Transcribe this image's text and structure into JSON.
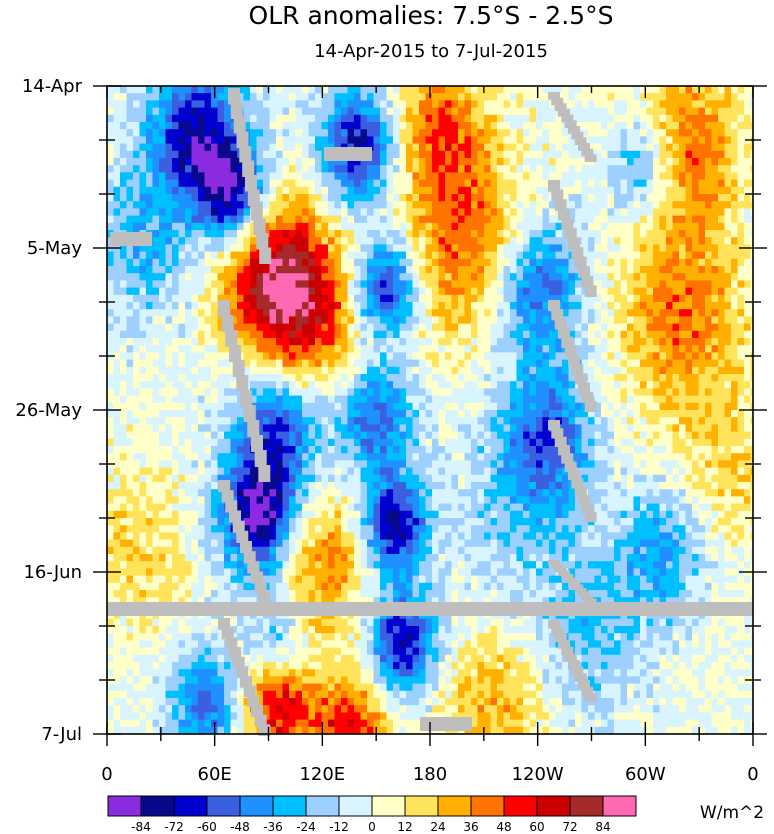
{
  "chart_data": {
    "type": "heatmap",
    "title": "OLR anomalies: 7.5°S - 2.5°S",
    "subtitle": "14-Apr-2015 to 7-Jul-2015",
    "units_label": "W/m^2",
    "x_ticks": [
      {
        "lon": 0,
        "label": "0"
      },
      {
        "lon": 60,
        "label": "60E"
      },
      {
        "lon": 120,
        "label": "120E"
      },
      {
        "lon": 180,
        "label": "180"
      },
      {
        "lon": 240,
        "label": "120W"
      },
      {
        "lon": 300,
        "label": "60W"
      },
      {
        "lon": 360,
        "label": "0"
      }
    ],
    "x_minor_step": 30,
    "xlim": [
      0,
      360
    ],
    "y_ticks": [
      {
        "day": 0,
        "label": "14-Apr"
      },
      {
        "day": 21,
        "label": "5-May"
      },
      {
        "day": 42,
        "label": "26-May"
      },
      {
        "day": 63,
        "label": "16-Jun"
      },
      {
        "day": 84,
        "label": "7-Jul"
      }
    ],
    "y_minor_step": 7,
    "ylim_days": [
      0,
      84
    ],
    "colorbar": {
      "levels": [
        "-84",
        "-72",
        "-60",
        "-48",
        "-36",
        "-24",
        "-12",
        "0",
        "12",
        "24",
        "36",
        "48",
        "60",
        "72",
        "84"
      ],
      "colors": [
        "#8a2be2",
        "#08088a",
        "#0000d0",
        "#3a5fe0",
        "#1e90ff",
        "#00bfff",
        "#9dcfff",
        "#d8f4ff",
        "#ffffc8",
        "#ffe35a",
        "#ffb000",
        "#ff7400",
        "#ff0000",
        "#cc0000",
        "#a52a2a",
        "#ff69b4"
      ]
    },
    "missing_color": "#bebebe",
    "grid": false
  }
}
